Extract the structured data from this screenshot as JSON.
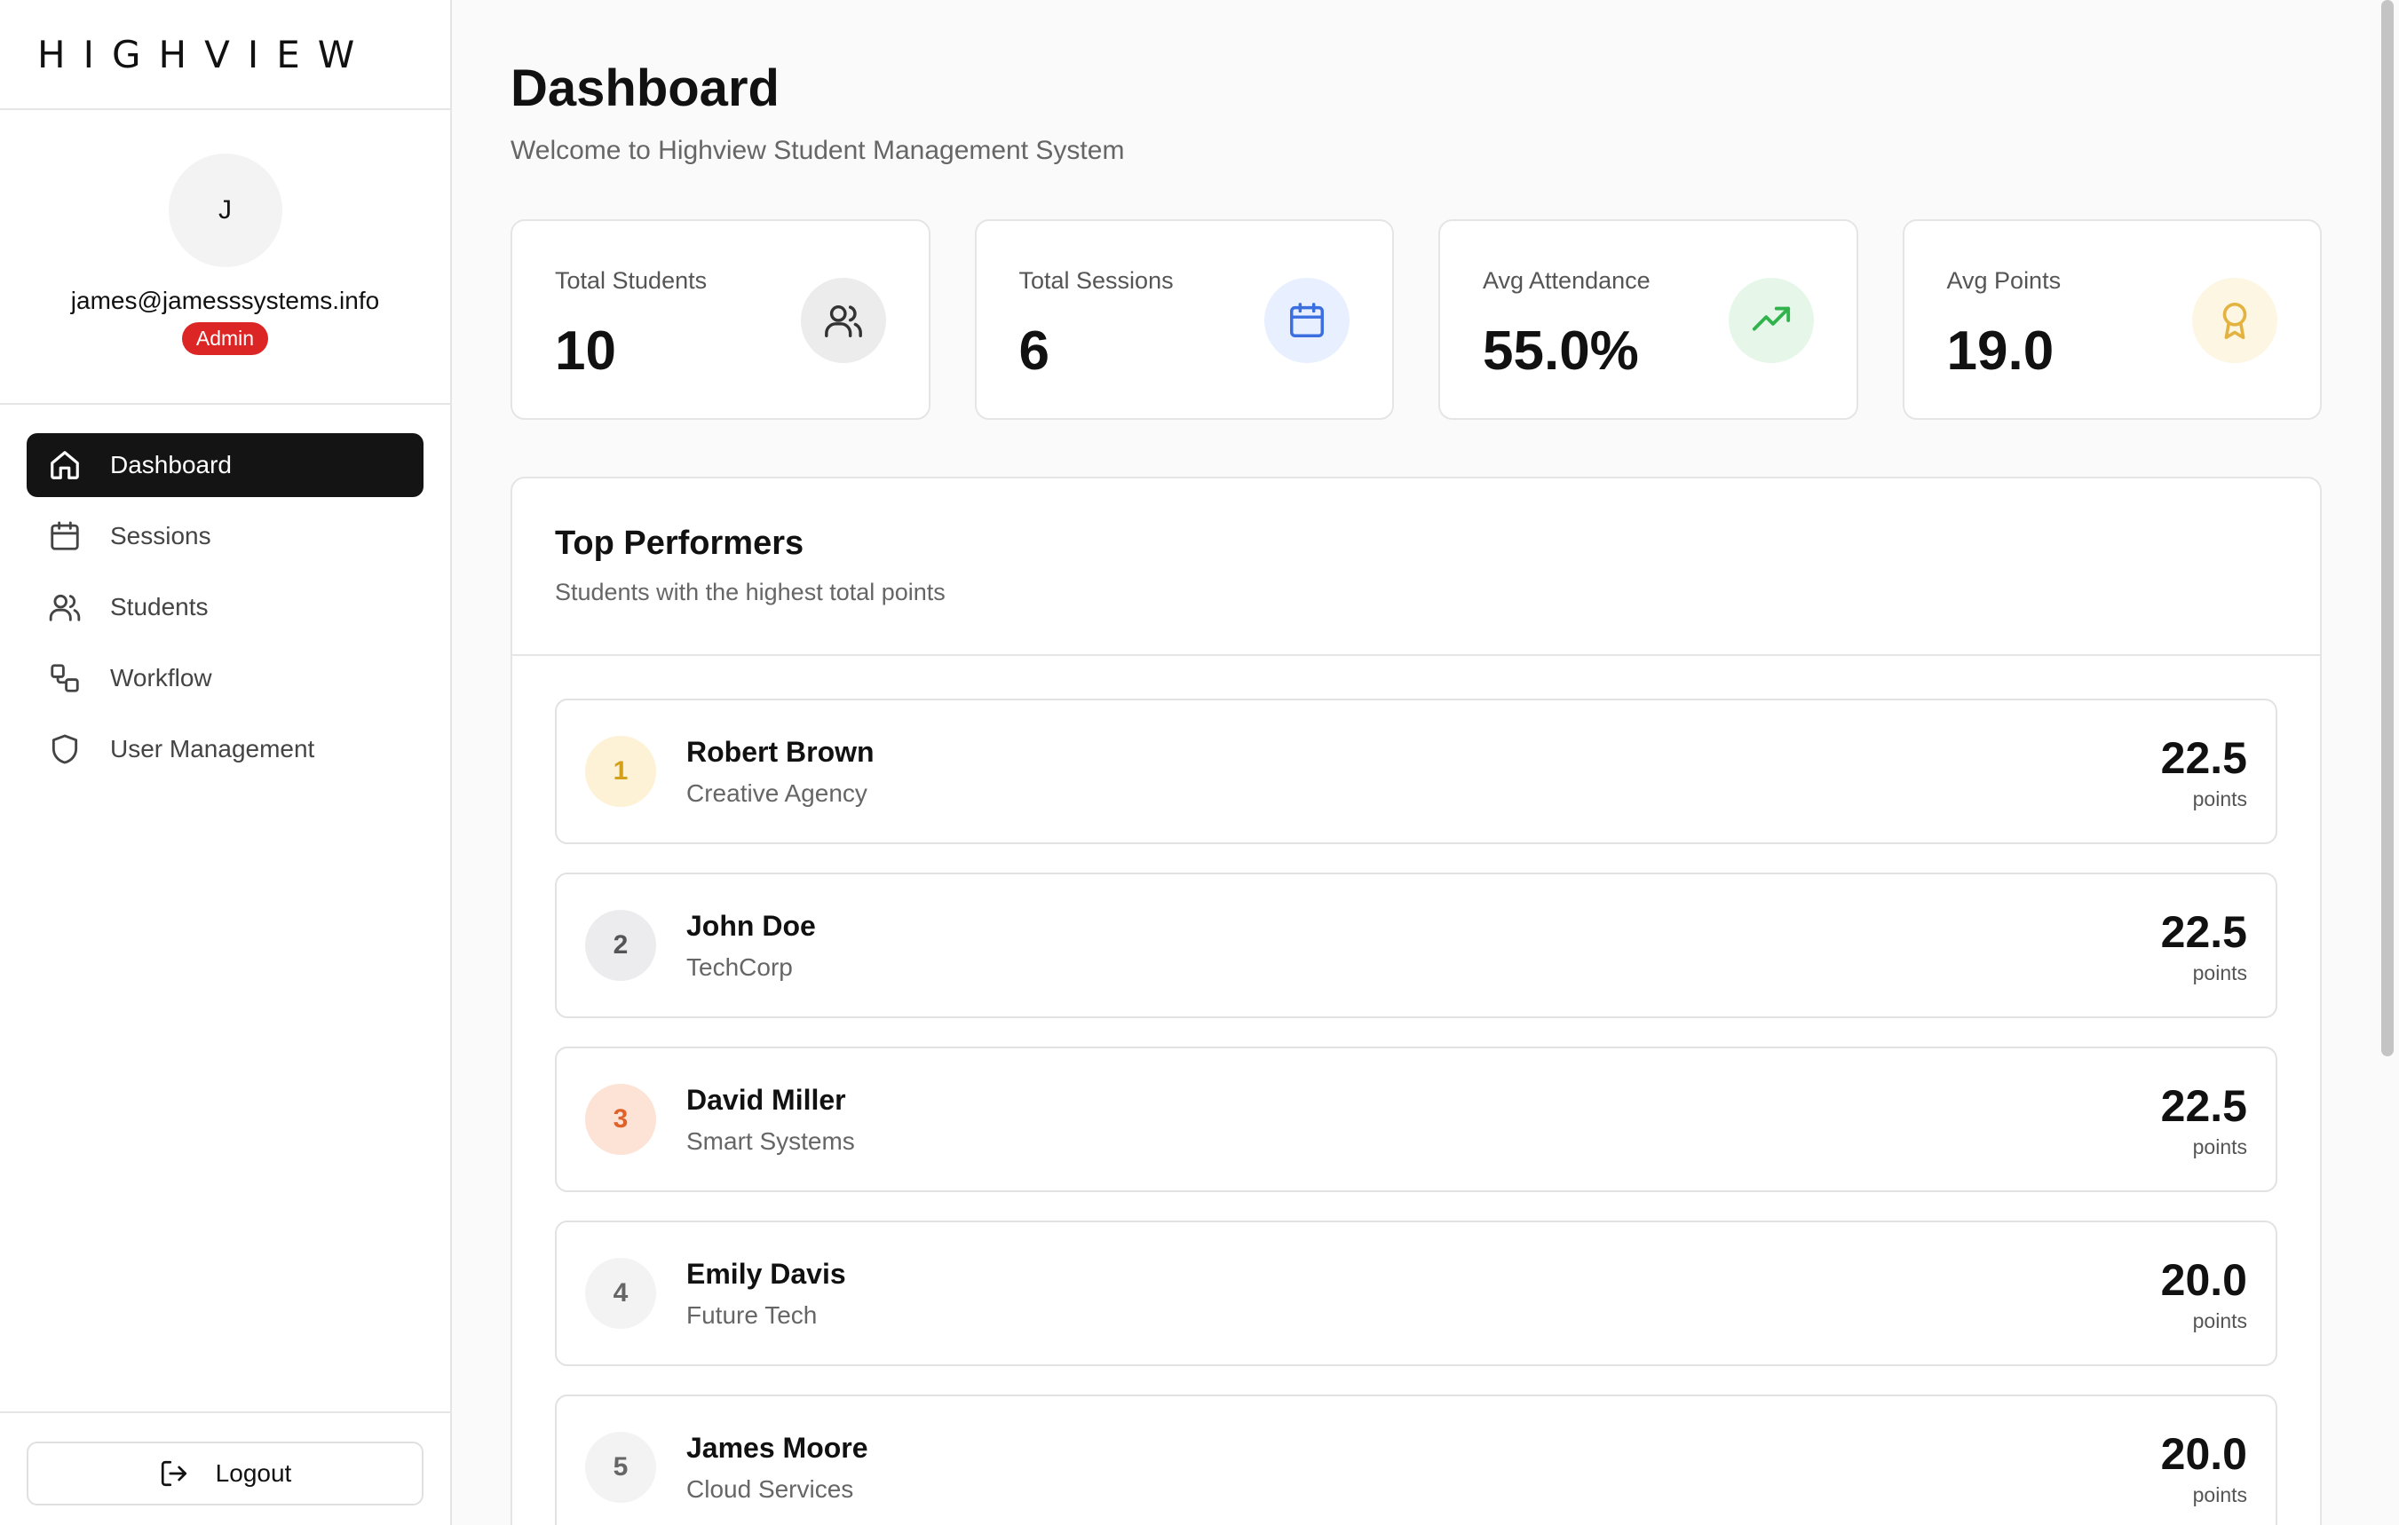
{
  "brand": {
    "logo_text": "HIGHVIEW"
  },
  "user": {
    "initial": "J",
    "email": "james@jamesssystems.info",
    "role": "Admin"
  },
  "nav": {
    "items": [
      {
        "label": "Dashboard",
        "icon": "home-icon",
        "active": true
      },
      {
        "label": "Sessions",
        "icon": "calendar-icon",
        "active": false
      },
      {
        "label": "Students",
        "icon": "users-icon",
        "active": false
      },
      {
        "label": "Workflow",
        "icon": "workflow-icon",
        "active": false
      },
      {
        "label": "User Management",
        "icon": "shield-icon",
        "active": false
      }
    ],
    "logout_label": "Logout"
  },
  "page": {
    "title": "Dashboard",
    "subtitle": "Welcome to Highview Student Management System"
  },
  "stats": [
    {
      "label": "Total Students",
      "value": "10",
      "icon": "users-icon",
      "icon_bg": "#ececec",
      "icon_color": "#333333"
    },
    {
      "label": "Total Sessions",
      "value": "6",
      "icon": "calendar-icon",
      "icon_bg": "#e8efff",
      "icon_color": "#3b6fe0"
    },
    {
      "label": "Avg Attendance",
      "value": "55.0%",
      "icon": "trending-up-icon",
      "icon_bg": "#e6f7ea",
      "icon_color": "#2fb34a"
    },
    {
      "label": "Avg Points",
      "value": "19.0",
      "icon": "award-icon",
      "icon_bg": "#fdf6e3",
      "icon_color": "#e3b341"
    }
  ],
  "top_performers": {
    "title": "Top Performers",
    "subtitle": "Students with the highest total points",
    "points_unit": "points",
    "rows": [
      {
        "rank": "1",
        "name": "Robert Brown",
        "company": "Creative Agency",
        "points": "22.5",
        "rank_bg": "#fdf1d6",
        "rank_color": "#d4a017"
      },
      {
        "rank": "2",
        "name": "John Doe",
        "company": "TechCorp",
        "points": "22.5",
        "rank_bg": "#ececee",
        "rank_color": "#555555"
      },
      {
        "rank": "3",
        "name": "David Miller",
        "company": "Smart Systems",
        "points": "22.5",
        "rank_bg": "#fde3d5",
        "rank_color": "#e0622b"
      },
      {
        "rank": "4",
        "name": "Emily Davis",
        "company": "Future Tech",
        "points": "20.0",
        "rank_bg": "#f3f3f3",
        "rank_color": "#666666"
      },
      {
        "rank": "5",
        "name": "James Moore",
        "company": "Cloud Services",
        "points": "20.0",
        "rank_bg": "#f3f3f3",
        "rank_color": "#666666"
      }
    ]
  }
}
